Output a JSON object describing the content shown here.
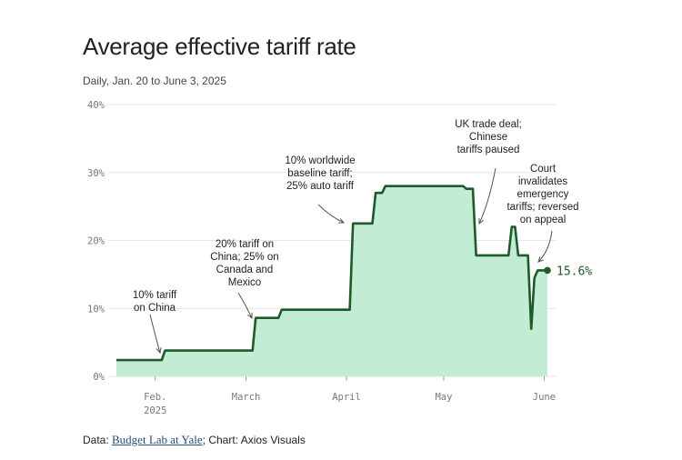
{
  "chart_data": {
    "type": "area",
    "title": "Average effective tariff rate",
    "subtitle": "Daily, Jan. 20 to June 3, 2025",
    "y_ticks": [
      "40%",
      "30%",
      "20%",
      "10%",
      "0%"
    ],
    "y_tick_values": [
      40,
      30,
      20,
      10,
      0
    ],
    "ylim": [
      0,
      40
    ],
    "x_ticks": [
      {
        "label": "Feb.",
        "sub": "2025",
        "day": 12
      },
      {
        "label": "March",
        "day": 40
      },
      {
        "label": "April",
        "day": 71
      },
      {
        "label": "May",
        "day": 101
      },
      {
        "label": "June",
        "day": 132
      }
    ],
    "xlim": [
      0,
      134
    ],
    "series": [
      {
        "name": "Average effective tariff rate",
        "points": [
          [
            0,
            2.4
          ],
          [
            14,
            2.4
          ],
          [
            15,
            3.8
          ],
          [
            42,
            3.8
          ],
          [
            43,
            8.6
          ],
          [
            50,
            8.6
          ],
          [
            51,
            9.8
          ],
          [
            72,
            9.8
          ],
          [
            73,
            22.5
          ],
          [
            79,
            22.5
          ],
          [
            80,
            27.0
          ],
          [
            82,
            27.0
          ],
          [
            83,
            28.0
          ],
          [
            107,
            28.0
          ],
          [
            108,
            27.6
          ],
          [
            110,
            27.6
          ],
          [
            111,
            17.8
          ],
          [
            121,
            17.8
          ],
          [
            122,
            22.0
          ],
          [
            123,
            22.0
          ],
          [
            124,
            17.8
          ],
          [
            127,
            17.8
          ],
          [
            128,
            7.0
          ],
          [
            129,
            14.5
          ],
          [
            130,
            15.6
          ],
          [
            133,
            15.6
          ]
        ]
      }
    ],
    "end_label": "15.6%",
    "annotations": [
      {
        "lines": [
          "10% tariff",
          "on China"
        ],
        "target_day": 14,
        "target_value": 3.0
      },
      {
        "lines": [
          "20% tariff on",
          "China; 25% on",
          "Canada and",
          "Mexico"
        ],
        "target_day": 42,
        "target_value": 8.6
      },
      {
        "lines": [
          "10% worldwide",
          "baseline tariff;",
          "25% auto tariff"
        ],
        "target_day": 71,
        "target_value": 22.5
      },
      {
        "lines": [
          "UK trade deal;",
          "Chinese",
          "tariffs paused"
        ],
        "target_day": 111,
        "target_value": 22.5
      },
      {
        "lines": [
          "Court",
          "invalidates",
          "emergency",
          "tariffs; reversed",
          "on appeal"
        ],
        "target_day": 131,
        "target_value": 17.0
      }
    ]
  },
  "footer": {
    "prefix": "Data: ",
    "source_link": "Budget Lab at Yale",
    "suffix": "; Chart: Axios Visuals"
  },
  "colors": {
    "fill": "#c2ecd3",
    "line": "#1f5a2a",
    "grid": "#e6e6e6"
  }
}
